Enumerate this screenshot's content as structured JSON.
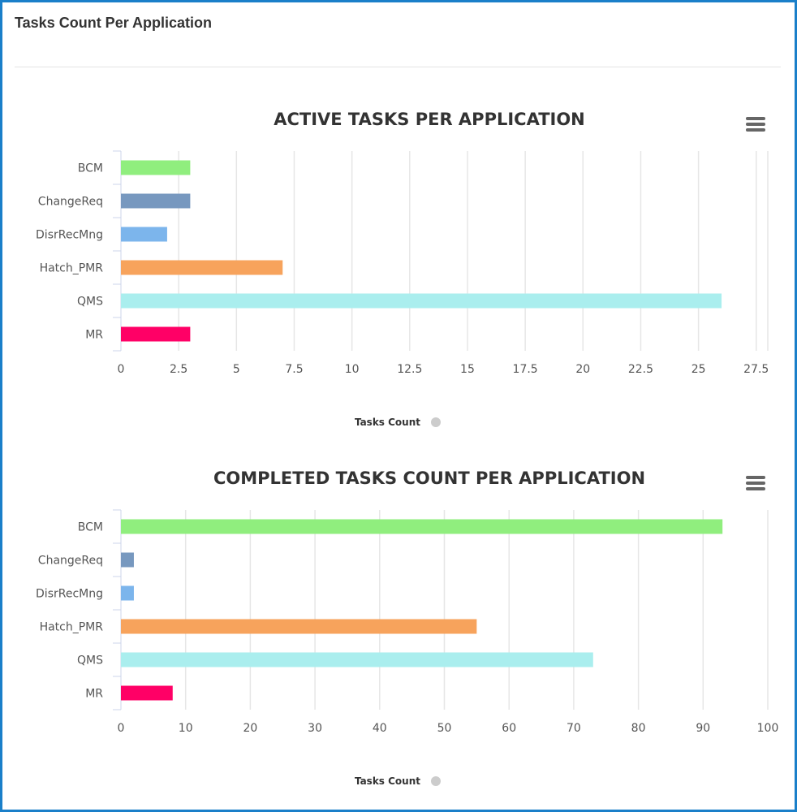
{
  "header": {
    "title": "Tasks Count Per Application"
  },
  "chart_data": [
    {
      "type": "bar",
      "orientation": "horizontal",
      "title": "ACTIVE TASKS PER APPLICATION",
      "categories": [
        "BCM",
        "ChangeReq",
        "DisrRecMng",
        "Hatch_PMR",
        "QMS",
        "MR"
      ],
      "series": [
        {
          "name": "Tasks Count",
          "values": [
            3,
            3,
            2,
            7,
            26,
            3
          ]
        }
      ],
      "colors": [
        "#90ee7e",
        "#7798bf",
        "#7cb5ec",
        "#f7a35c",
        "#aaeeee",
        "#ff0066"
      ],
      "xlim": [
        0,
        28
      ],
      "ticks": [
        "0",
        "2.5",
        "5",
        "7.5",
        "10",
        "12.5",
        "15",
        "17.5",
        "20",
        "22.5",
        "25",
        "27.5"
      ],
      "tick_step": 2.5,
      "grid": true,
      "legend": "bottom-center",
      "menu_icon": "hamburger-menu-icon"
    },
    {
      "type": "bar",
      "orientation": "horizontal",
      "title": "COMPLETED TASKS COUNT PER APPLICATION",
      "categories": [
        "BCM",
        "ChangeReq",
        "DisrRecMng",
        "Hatch_PMR",
        "QMS",
        "MR"
      ],
      "series": [
        {
          "name": "Tasks Count",
          "values": [
            93,
            2,
            2,
            55,
            73,
            8
          ]
        }
      ],
      "colors": [
        "#90ee7e",
        "#7798bf",
        "#7cb5ec",
        "#f7a35c",
        "#aaeeee",
        "#ff0066"
      ],
      "xlim": [
        0,
        100
      ],
      "ticks": [
        "0",
        "10",
        "20",
        "30",
        "40",
        "50",
        "60",
        "70",
        "80",
        "90",
        "100"
      ],
      "tick_step": 10,
      "grid": true,
      "legend": "bottom-center",
      "menu_icon": "hamburger-menu-icon"
    }
  ]
}
